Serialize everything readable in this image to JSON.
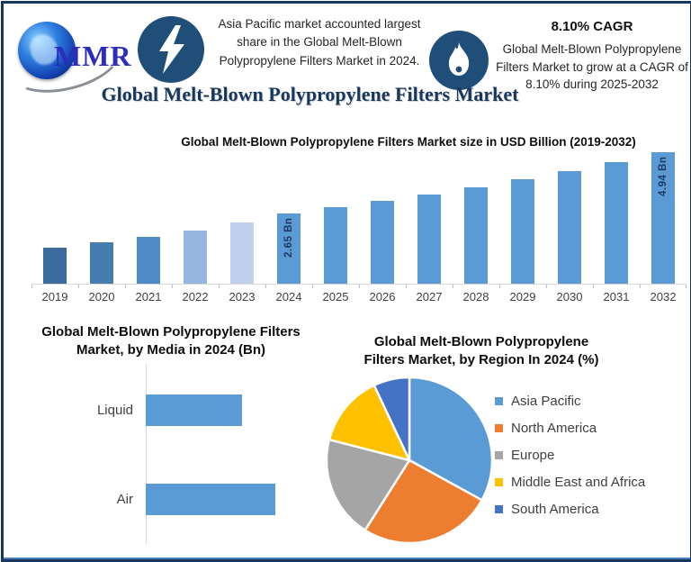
{
  "frame": {
    "border_color": "#17375e",
    "bottom_accent_color": "#4a7ebb"
  },
  "header": {
    "logo_text": "MMR",
    "highlight_left": "Asia Pacific market accounted largest share in the Global Melt-Blown Polypropylene Filters Market  in 2024.",
    "cagr_title": "8.10% CAGR",
    "cagr_text": "Global Melt-Blown Polypropylene Filters Market to grow at a CAGR of 8.10% during 2025-2032",
    "main_title": "Global Melt-Blown Polypropylene Filters Market",
    "icon_bg": "#1f4e79",
    "icons": [
      "lightning-icon",
      "flame-icon"
    ]
  },
  "chart_data": [
    {
      "type": "bar",
      "title": "Global Melt-Blown Polypropylene Filters Market size in USD Billion (2019-2032)",
      "categories": [
        "2019",
        "2020",
        "2021",
        "2022",
        "2023",
        "2024",
        "2025",
        "2026",
        "2027",
        "2028",
        "2029",
        "2030",
        "2031",
        "2032"
      ],
      "values": [
        1.35,
        1.55,
        1.75,
        2.0,
        2.3,
        2.65,
        2.87,
        3.1,
        3.35,
        3.62,
        3.92,
        4.23,
        4.57,
        4.94
      ],
      "unit": "USD Billion",
      "data_labels": {
        "2024": "2.65 Bn",
        "2032": "4.94 Bn"
      },
      "bar_colors": [
        "#3a6d9e",
        "#447dae",
        "#4f8cc7",
        "#94b6e1",
        "#c0d0ec",
        "#5b9bd5",
        "#5b9bd5",
        "#5b9bd5",
        "#5b9bd5",
        "#5b9bd5",
        "#5b9bd5",
        "#5b9bd5",
        "#5b9bd5",
        "#5b9bd5"
      ],
      "ylim": [
        0,
        5.2
      ],
      "grid": false,
      "axis_color": "#d9d9d9",
      "label_color": "#404040",
      "data_label_color": "#1f3864"
    },
    {
      "type": "bar",
      "orientation": "horizontal",
      "title": "Global Melt-Blown Polypropylene Filters Market, by Media in 2024 (Bn)",
      "categories": [
        "Liquid",
        "Air"
      ],
      "values": [
        1.13,
        1.52
      ],
      "unit": "Bn",
      "bar_color": "#5b9bd5",
      "axis_color": "#d9d9d9"
    },
    {
      "type": "pie",
      "title": "Global Melt-Blown Polypropylene Filters Market, by Region In 2024 (%)",
      "labels": [
        "Asia Pacific",
        "North America",
        "Europe",
        "Middle East and Africa",
        "South America"
      ],
      "values": [
        33,
        26,
        20,
        14,
        7
      ],
      "colors": [
        "#5b9bd5",
        "#ed7d31",
        "#a5a5a5",
        "#ffc000",
        "#4472c4"
      ],
      "legend_position": "right",
      "start_angle_deg": 0,
      "slice_border_color": "#ffffff"
    }
  ]
}
